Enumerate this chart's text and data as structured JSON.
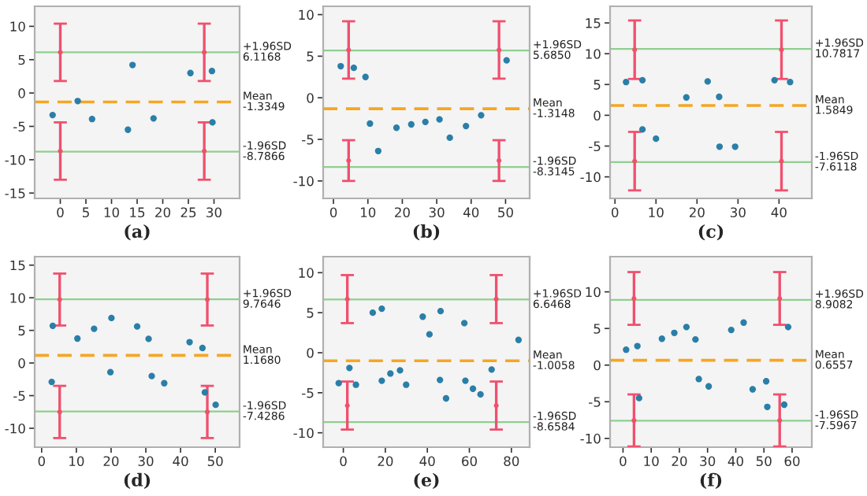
{
  "chart_data": [
    {
      "type": "scatter",
      "title": "(a)",
      "xlim": [
        -5,
        35
      ],
      "ylim": [
        -15.8,
        13
      ],
      "xticks": [
        0,
        5,
        10,
        15,
        20,
        25,
        30
      ],
      "yticks": [
        -15,
        -10,
        -5,
        0,
        5,
        10
      ],
      "series": [
        {
          "marker": "circle",
          "color": "#2a7fa8",
          "x": [
            -1.5,
            3.4,
            6.2,
            13.2,
            14.1,
            18.2,
            25.4,
            29.6,
            29.7
          ],
          "values": [
            -3.3,
            -1.2,
            -3.9,
            -5.5,
            4.2,
            -3.8,
            3.0,
            3.3,
            -4.4
          ]
        },
        {
          "marker": "none",
          "color": "#f0506e",
          "x": [
            0,
            28.1,
            0,
            28.1
          ],
          "values": [
            6.1,
            6.1,
            -8.7,
            -8.7
          ],
          "errors": [
            4.3,
            4.3,
            4.3,
            4.3
          ]
        }
      ],
      "ref_lines": [
        {
          "axis": "y",
          "value": 6.1168,
          "label": "+1.96SD\n6.1168",
          "color": "#8fcf8f",
          "line_style": "solid"
        },
        {
          "axis": "y",
          "value": -1.3349,
          "label": "Mean\n-1.3349",
          "color": "#f5a623",
          "line_style": "dashed"
        },
        {
          "axis": "y",
          "value": -8.7866,
          "label": "-1.96SD\n-8.7866",
          "color": "#8fcf8f",
          "line_style": "solid"
        }
      ]
    },
    {
      "type": "scatter",
      "title": "(b)",
      "xlim": [
        -3,
        57
      ],
      "ylim": [
        -12.1,
        11
      ],
      "xticks": [
        0,
        10,
        20,
        30,
        40,
        50
      ],
      "yticks": [
        -10,
        -5,
        0,
        5,
        10
      ],
      "series": [
        {
          "marker": "circle",
          "color": "#2a7fa8",
          "x": [
            2.1,
            5.9,
            9.3,
            10.6,
            13.0,
            18.3,
            22.6,
            26.7,
            30.8,
            33.8,
            38.5,
            42.9,
            50.3
          ],
          "values": [
            3.8,
            3.6,
            2.5,
            -3.1,
            -6.4,
            -3.6,
            -3.2,
            -2.9,
            -2.6,
            -4.8,
            -3.4,
            -2.1,
            4.5
          ]
        },
        {
          "marker": "none",
          "color": "#f0506e",
          "x": [
            4.4,
            48.1,
            4.4,
            48.1
          ],
          "values": [
            5.75,
            5.75,
            -7.55,
            -7.55
          ],
          "errors": [
            3.45,
            3.45,
            2.45,
            2.45
          ]
        }
      ],
      "ref_lines": [
        {
          "axis": "y",
          "value": 5.685,
          "label": "+1.96SD\n5.6850",
          "color": "#8fcf8f",
          "line_style": "solid"
        },
        {
          "axis": "y",
          "value": -1.3148,
          "label": "Mean\n-1.3148",
          "color": "#f5a623",
          "line_style": "dashed"
        },
        {
          "axis": "y",
          "value": -8.3145,
          "label": "-1.96SD\n-8.3145",
          "color": "#8fcf8f",
          "line_style": "solid"
        }
      ]
    },
    {
      "type": "scatter",
      "title": "(c)",
      "xlim": [
        -1.2,
        48
      ],
      "ylim": [
        -13.5,
        17.7
      ],
      "xticks": [
        0,
        10,
        20,
        30,
        40
      ],
      "yticks": [
        -10,
        -5,
        0,
        5,
        10,
        15
      ],
      "series": [
        {
          "marker": "circle",
          "color": "#2a7fa8",
          "x": [
            2.7,
            6.7,
            6.7,
            10.0,
            17.4,
            22.6,
            25.4,
            25.5,
            29.3,
            38.9,
            42.7
          ],
          "values": [
            5.4,
            5.7,
            -2.3,
            -3.8,
            2.9,
            5.5,
            3.0,
            -5.1,
            -5.1,
            5.7,
            5.4
          ]
        },
        {
          "marker": "none",
          "color": "#f0506e",
          "x": [
            4.8,
            40.6,
            4.8,
            40.6
          ],
          "values": [
            10.65,
            10.65,
            -7.45,
            -7.45
          ],
          "errors": [
            4.75,
            4.75,
            4.75,
            4.75
          ]
        }
      ],
      "ref_lines": [
        {
          "axis": "y",
          "value": 10.7817,
          "label": "+1.96SD\n10.7817",
          "color": "#8fcf8f",
          "line_style": "solid"
        },
        {
          "axis": "y",
          "value": 1.5849,
          "label": "Mean\n1.5849",
          "color": "#f5a623",
          "line_style": "dashed"
        },
        {
          "axis": "y",
          "value": -7.6118,
          "label": "-1.96SD\n-7.6118",
          "color": "#8fcf8f",
          "line_style": "solid"
        }
      ]
    },
    {
      "type": "scatter",
      "title": "(d)",
      "xlim": [
        -2,
        57
      ],
      "ylim": [
        -12.9,
        16.3
      ],
      "xticks": [
        0,
        10,
        20,
        30,
        40,
        50
      ],
      "yticks": [
        -10,
        -5,
        0,
        5,
        10,
        15
      ],
      "series": [
        {
          "marker": "circle",
          "color": "#2a7fa8",
          "x": [
            3.2,
            2.9,
            10.3,
            15.1,
            20.1,
            19.8,
            27.5,
            30.8,
            31.7,
            35.3,
            42.6,
            46.3,
            47.0,
            50.1
          ],
          "values": [
            5.7,
            -2.9,
            3.75,
            5.25,
            6.9,
            -1.4,
            5.6,
            3.7,
            -2.0,
            -3.1,
            3.2,
            2.3,
            -4.5,
            -6.4
          ]
        },
        {
          "marker": "none",
          "color": "#f0506e",
          "x": [
            5.2,
            47.7,
            5.2,
            47.7
          ],
          "values": [
            9.73,
            9.73,
            -7.5,
            -7.5
          ],
          "errors": [
            3.98,
            3.98,
            4.0,
            4.0
          ]
        }
      ],
      "ref_lines": [
        {
          "axis": "y",
          "value": 9.7646,
          "label": "+1.96SD\n9.7646",
          "color": "#8fcf8f",
          "line_style": "solid"
        },
        {
          "axis": "y",
          "value": 1.168,
          "label": "Mean\n1.1680",
          "color": "#f5a623",
          "line_style": "dashed"
        },
        {
          "axis": "y",
          "value": -7.4286,
          "label": "-1.96SD\n-7.4286",
          "color": "#8fcf8f",
          "line_style": "solid"
        }
      ]
    },
    {
      "type": "scatter",
      "title": "(e)",
      "xlim": [
        -9.6,
        88.7
      ],
      "ylim": [
        -11.8,
        12
      ],
      "xticks": [
        0,
        20,
        40,
        60,
        80
      ],
      "yticks": [
        -10,
        -5,
        0,
        5,
        10
      ],
      "series": [
        {
          "marker": "circle",
          "color": "#2a7fa8",
          "x": [
            -2.2,
            2.9,
            6.0,
            14.0,
            18.3,
            18.3,
            22.4,
            27.0,
            29.9,
            37.8,
            41.0,
            46.3,
            46.0,
            48.9,
            57.6,
            58.1,
            61.7,
            65.3,
            70.6,
            83.4
          ],
          "values": [
            -3.8,
            -1.9,
            -4.0,
            5.0,
            5.5,
            -3.5,
            -2.6,
            -2.2,
            -4.0,
            4.5,
            2.3,
            5.2,
            -3.4,
            -5.7,
            3.7,
            -3.5,
            -4.5,
            -5.2,
            -2.1,
            1.6
          ]
        },
        {
          "marker": "none",
          "color": "#f0506e",
          "x": [
            1.9,
            72.8,
            1.9,
            72.8
          ],
          "values": [
            6.7,
            6.7,
            -6.6,
            -6.6
          ],
          "errors": [
            3.0,
            3.0,
            3.0,
            3.0
          ]
        }
      ],
      "ref_lines": [
        {
          "axis": "y",
          "value": 6.6468,
          "label": "+1.96SD\n6.6468",
          "color": "#8fcf8f",
          "line_style": "solid"
        },
        {
          "axis": "y",
          "value": -1.0058,
          "label": "Mean\n-1.0058",
          "color": "#f5a623",
          "line_style": "dashed"
        },
        {
          "axis": "y",
          "value": -8.6584,
          "label": "-1.96SD\n-8.6584",
          "color": "#8fcf8f",
          "line_style": "solid"
        }
      ]
    },
    {
      "type": "scatter",
      "title": "(f)",
      "xlim": [
        -4.6,
        67
      ],
      "ylim": [
        -11.2,
        14.8
      ],
      "xticks": [
        0,
        10,
        20,
        30,
        40,
        50,
        60
      ],
      "yticks": [
        -10,
        -5,
        0,
        5,
        10
      ],
      "series": [
        {
          "marker": "circle",
          "color": "#2a7fa8",
          "x": [
            1.1,
            5.1,
            5.7,
            13.8,
            18.2,
            22.5,
            25.7,
            26.9,
            30.4,
            38.4,
            42.8,
            46.0,
            50.8,
            51.2,
            57.2,
            58.6
          ],
          "values": [
            2.1,
            2.6,
            -4.5,
            3.6,
            4.4,
            5.2,
            3.5,
            -1.9,
            -2.9,
            4.8,
            5.8,
            -3.3,
            -2.2,
            -5.7,
            -5.4,
            5.2
          ]
        },
        {
          "marker": "none",
          "color": "#f0506e",
          "x": [
            3.9,
            55.6,
            3.9,
            55.6
          ],
          "values": [
            9.1,
            9.1,
            -7.55,
            -7.55
          ],
          "errors": [
            3.6,
            3.6,
            3.55,
            3.55
          ]
        }
      ],
      "ref_lines": [
        {
          "axis": "y",
          "value": 8.9082,
          "label": "+1.96SD\n8.9082",
          "color": "#8fcf8f",
          "line_style": "solid"
        },
        {
          "axis": "y",
          "value": 0.6557,
          "label": "Mean\n0.6557",
          "color": "#f5a623",
          "line_style": "dashed"
        },
        {
          "axis": "y",
          "value": -7.5967,
          "label": "-1.96SD\n-7.5967",
          "color": "#8fcf8f",
          "line_style": "solid"
        }
      ]
    }
  ]
}
